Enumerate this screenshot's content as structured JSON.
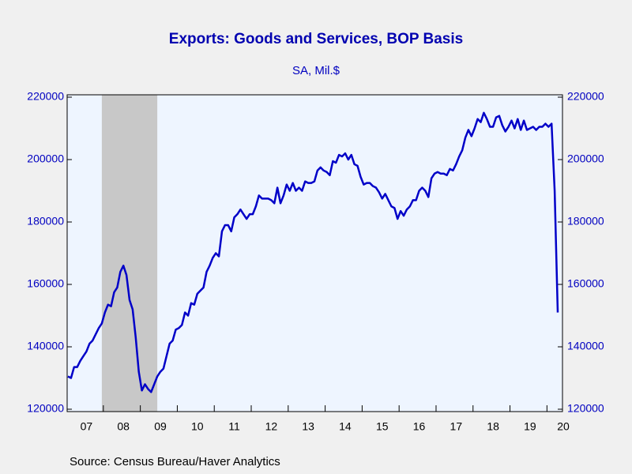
{
  "chart_data": {
    "type": "line",
    "title": "Exports: Goods and Services, BOP Basis",
    "subtitle": "SA, Mil.$",
    "source": "Source:  Census Bureau/Haver Analytics",
    "categories": [
      null,
      null,
      null,
      null,
      null,
      null,
      "07",
      null,
      null,
      null,
      null,
      null,
      null,
      null,
      null,
      null,
      null,
      null,
      "08",
      null,
      null,
      null,
      null,
      null,
      null,
      null,
      null,
      null,
      null,
      null,
      "09",
      null,
      null,
      null,
      null,
      null,
      null,
      null,
      null,
      null,
      null,
      null,
      "10",
      null,
      null,
      null,
      null,
      null,
      null,
      null,
      null,
      null,
      null,
      null,
      "11",
      null,
      null,
      null,
      null,
      null,
      null,
      null,
      null,
      null,
      null,
      null,
      "12",
      null,
      null,
      null,
      null,
      null,
      null,
      null,
      null,
      null,
      null,
      null,
      "13",
      null,
      null,
      null,
      null,
      null,
      null,
      null,
      null,
      null,
      null,
      null,
      "14",
      null,
      null,
      null,
      null,
      null,
      null,
      null,
      null,
      null,
      null,
      null,
      "15",
      null,
      null,
      null,
      null,
      null,
      null,
      null,
      null,
      null,
      null,
      null,
      "16",
      null,
      null,
      null,
      null,
      null,
      null,
      null,
      null,
      null,
      null,
      null,
      "17",
      null,
      null,
      null,
      null,
      null,
      null,
      null,
      null,
      null,
      null,
      null,
      "18",
      null,
      null,
      null,
      null,
      null,
      null,
      null,
      null,
      null,
      null,
      null,
      "19",
      null,
      null,
      null,
      null,
      null,
      null,
      null,
      null,
      "20"
    ],
    "series": [
      {
        "color": "#0000c8",
        "values": [
          130500,
          130000,
          133500,
          133500,
          135500,
          137000,
          138500,
          141000,
          142000,
          144000,
          146000,
          147500,
          151000,
          153500,
          153000,
          157500,
          159000,
          164000,
          166000,
          163000,
          155000,
          152000,
          143000,
          132000,
          126000,
          128000,
          126500,
          125500,
          128000,
          130500,
          132000,
          133000,
          137000,
          141000,
          142000,
          145500,
          146000,
          147000,
          151000,
          150000,
          154000,
          153500,
          157000,
          158000,
          159000,
          164000,
          166000,
          168500,
          170000,
          169000,
          177000,
          179000,
          179000,
          177000,
          181500,
          182500,
          184000,
          182500,
          181000,
          182500,
          182500,
          185000,
          188500,
          187500,
          187500,
          187500,
          187000,
          186000,
          191000,
          186000,
          188500,
          192000,
          190000,
          192500,
          190000,
          191000,
          190000,
          193000,
          192500,
          192500,
          193000,
          196500,
          197500,
          196500,
          196000,
          195000,
          199500,
          199000,
          201500,
          201000,
          202000,
          200000,
          201500,
          198500,
          198000,
          194500,
          192000,
          192500,
          192500,
          191500,
          191000,
          189500,
          187500,
          189000,
          187000,
          185000,
          184500,
          181000,
          183500,
          182000,
          184000,
          185000,
          187000,
          187000,
          190000,
          191000,
          190000,
          188000,
          194000,
          195500,
          196000,
          195500,
          195500,
          195000,
          197000,
          196500,
          198500,
          201000,
          203000,
          207000,
          209500,
          207500,
          210000,
          213000,
          212000,
          215000,
          213000,
          210500,
          210500,
          213500,
          214000,
          211000,
          209000,
          210500,
          212500,
          210000,
          213000,
          209500,
          212500,
          209500,
          210000,
          210500,
          209500,
          210500,
          210500,
          211500,
          210500,
          211500,
          190000,
          151000
        ]
      }
    ],
    "recession": [
      11,
      29
    ],
    "ylim": [
      120000,
      220000
    ],
    "yticks": [
      120000,
      140000,
      160000,
      180000,
      200000,
      220000
    ],
    "y2lim": [
      120000,
      220000
    ],
    "y2ticks": [
      120000,
      140000,
      160000,
      180000,
      200000,
      220000
    ]
  }
}
